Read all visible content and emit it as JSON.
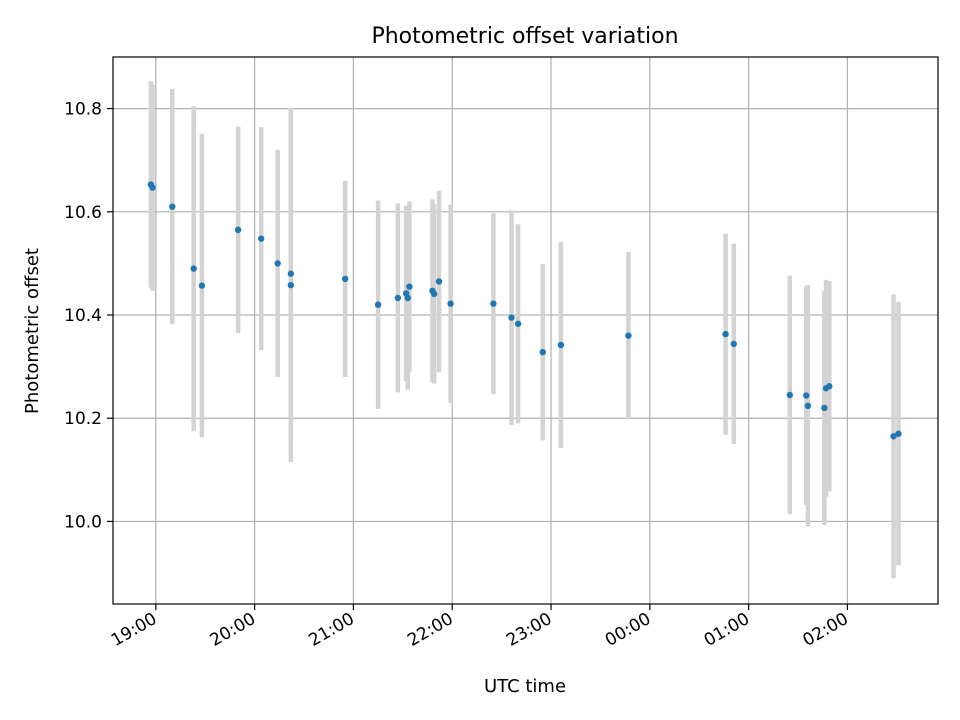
{
  "chart_data": {
    "type": "scatter",
    "title": "Photometric offset variation",
    "xlabel": "UTC time",
    "ylabel": "Photometric offset",
    "x_axis": "time",
    "xlim": [
      "18:34",
      "02:55"
    ],
    "ylim": [
      9.84,
      10.9
    ],
    "x_ticks": [
      "19:00",
      "20:00",
      "21:00",
      "22:00",
      "23:00",
      "00:00",
      "01:00",
      "02:00"
    ],
    "y_ticks": [
      10.0,
      10.2,
      10.4,
      10.6,
      10.8
    ],
    "grid": true,
    "legend": "none",
    "colors": {
      "points": "#1f77b4",
      "error_bars": "#d3d3d3",
      "grid": "#b0b0b0"
    },
    "series": [
      {
        "points": [
          {
            "t": "18:57",
            "y": 10.653,
            "lo": 10.453,
            "hi": 10.853
          },
          {
            "t": "18:58",
            "y": 10.647,
            "lo": 10.447,
            "hi": 10.847
          },
          {
            "t": "19:10",
            "y": 10.61,
            "lo": 10.382,
            "hi": 10.838
          },
          {
            "t": "19:23",
            "y": 10.49,
            "lo": 10.175,
            "hi": 10.805
          },
          {
            "t": "19:28",
            "y": 10.457,
            "lo": 10.163,
            "hi": 10.751
          },
          {
            "t": "19:50",
            "y": 10.565,
            "lo": 10.365,
            "hi": 10.765
          },
          {
            "t": "20:04",
            "y": 10.548,
            "lo": 10.332,
            "hi": 10.764
          },
          {
            "t": "20:14",
            "y": 10.5,
            "lo": 10.28,
            "hi": 10.72
          },
          {
            "t": "20:22",
            "y": 10.48,
            "lo": 10.158,
            "hi": 10.802
          },
          {
            "t": "20:22",
            "y": 10.458,
            "lo": 10.115,
            "hi": 10.801
          },
          {
            "t": "20:55",
            "y": 10.47,
            "lo": 10.28,
            "hi": 10.66
          },
          {
            "t": "21:15",
            "y": 10.42,
            "lo": 10.218,
            "hi": 10.622
          },
          {
            "t": "21:27",
            "y": 10.433,
            "lo": 10.25,
            "hi": 10.616
          },
          {
            "t": "21:32",
            "y": 10.442,
            "lo": 10.272,
            "hi": 10.612
          },
          {
            "t": "21:33",
            "y": 10.433,
            "lo": 10.255,
            "hi": 10.611
          },
          {
            "t": "21:34",
            "y": 10.455,
            "lo": 10.29,
            "hi": 10.62
          },
          {
            "t": "21:48",
            "y": 10.447,
            "lo": 10.27,
            "hi": 10.624
          },
          {
            "t": "21:49",
            "y": 10.441,
            "lo": 10.267,
            "hi": 10.615
          },
          {
            "t": "21:52",
            "y": 10.465,
            "lo": 10.289,
            "hi": 10.641
          },
          {
            "t": "21:59",
            "y": 10.422,
            "lo": 10.23,
            "hi": 10.614
          },
          {
            "t": "22:25",
            "y": 10.422,
            "lo": 10.247,
            "hi": 10.597
          },
          {
            "t": "22:36",
            "y": 10.395,
            "lo": 10.187,
            "hi": 10.603
          },
          {
            "t": "22:40",
            "y": 10.383,
            "lo": 10.19,
            "hi": 10.576
          },
          {
            "t": "22:55",
            "y": 10.328,
            "lo": 10.157,
            "hi": 10.499
          },
          {
            "t": "23:06",
            "y": 10.342,
            "lo": 10.142,
            "hi": 10.542
          },
          {
            "t": "23:47",
            "y": 10.36,
            "lo": 10.198,
            "hi": 10.522
          },
          {
            "t": "00:46",
            "y": 10.363,
            "lo": 10.168,
            "hi": 10.558
          },
          {
            "t": "00:51",
            "y": 10.344,
            "lo": 10.15,
            "hi": 10.538
          },
          {
            "t": "01:25",
            "y": 10.245,
            "lo": 10.014,
            "hi": 10.476
          },
          {
            "t": "01:35",
            "y": 10.244,
            "lo": 10.032,
            "hi": 10.456
          },
          {
            "t": "01:36",
            "y": 10.224,
            "lo": 9.99,
            "hi": 10.458
          },
          {
            "t": "01:46",
            "y": 10.22,
            "lo": 9.993,
            "hi": 10.447
          },
          {
            "t": "01:47",
            "y": 10.258,
            "lo": 10.048,
            "hi": 10.468
          },
          {
            "t": "01:49",
            "y": 10.262,
            "lo": 10.058,
            "hi": 10.466
          },
          {
            "t": "02:28",
            "y": 10.165,
            "lo": 9.89,
            "hi": 10.44
          },
          {
            "t": "02:31",
            "y": 10.17,
            "lo": 9.915,
            "hi": 10.425
          }
        ]
      }
    ]
  }
}
